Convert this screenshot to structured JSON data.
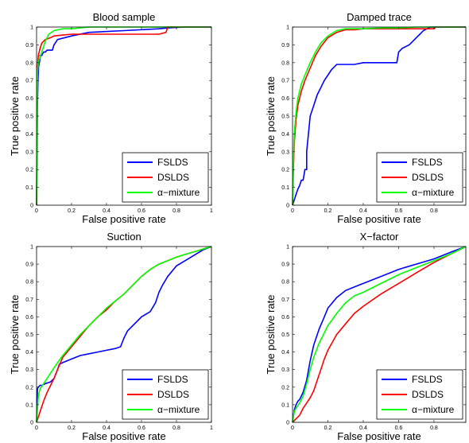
{
  "colors": {
    "FSLDS": "#0000ff",
    "DSLDS": "#ff0000",
    "alpha": "#00ff00"
  },
  "chart_data": [
    {
      "type": "line",
      "title": "Blood sample",
      "xlabel": "False positive rate",
      "ylabel": "True positive rate",
      "xlim": [
        0,
        1
      ],
      "ylim": [
        0,
        1
      ],
      "xticks": [
        "0",
        "0.2",
        "0.4",
        "0.6",
        "0.8",
        "1"
      ],
      "yticks": [
        "0",
        "0.1",
        "0.2",
        "0.3",
        "0.4",
        "0.5",
        "0.6",
        "0.7",
        "0.8",
        "0.9",
        "1"
      ],
      "legend_position": "bottom-right",
      "series": [
        {
          "name": "FSLDS",
          "x": [
            0,
            0.003,
            0.005,
            0.008,
            0.012,
            0.02,
            0.02,
            0.03,
            0.04,
            0.05,
            0.06,
            0.07,
            0.09,
            0.1,
            0.12,
            0.2,
            0.3,
            0.5,
            0.7,
            0.75,
            0.85,
            1.0
          ],
          "y": [
            0,
            0.3,
            0.55,
            0.7,
            0.78,
            0.82,
            0.84,
            0.84,
            0.86,
            0.86,
            0.87,
            0.87,
            0.87,
            0.9,
            0.93,
            0.95,
            0.97,
            0.98,
            0.99,
            0.995,
            1.0,
            1.0
          ]
        },
        {
          "name": "DSLDS",
          "x": [
            0,
            0.003,
            0.006,
            0.01,
            0.02,
            0.03,
            0.05,
            0.08,
            0.1,
            0.15,
            0.2,
            0.3,
            0.5,
            0.7,
            0.74,
            0.75,
            1.0
          ],
          "y": [
            0,
            0.6,
            0.78,
            0.84,
            0.88,
            0.91,
            0.93,
            0.94,
            0.95,
            0.955,
            0.96,
            0.96,
            0.96,
            0.96,
            0.97,
            1.0,
            1.0
          ]
        },
        {
          "name": "α−mixture",
          "x": [
            0,
            0.003,
            0.006,
            0.01,
            0.02,
            0.03,
            0.05,
            0.07,
            0.1,
            0.15,
            0.2,
            0.3,
            1.0
          ],
          "y": [
            0,
            0.5,
            0.75,
            0.8,
            0.83,
            0.86,
            0.92,
            0.96,
            0.98,
            0.99,
            0.99,
            1.0,
            1.0
          ]
        }
      ]
    },
    {
      "type": "line",
      "title": "Damped trace",
      "xlabel": "False positive rate",
      "ylabel": "True positive rate",
      "xlim": [
        0,
        0.98
      ],
      "ylim": [
        0,
        1
      ],
      "xticks": [
        "0",
        "0.2",
        "0.4",
        "0.6",
        "0.8"
      ],
      "yticks": [
        "0",
        "0.1",
        "0.2",
        "0.3",
        "0.4",
        "0.5",
        "0.6",
        "0.7",
        "0.8",
        "0.9",
        "1"
      ],
      "legend_position": "bottom-right",
      "series": [
        {
          "name": "FSLDS",
          "x": [
            0,
            0.01,
            0.02,
            0.03,
            0.04,
            0.05,
            0.06,
            0.07,
            0.08,
            0.08,
            0.09,
            0.1,
            0.12,
            0.14,
            0.16,
            0.18,
            0.2,
            0.22,
            0.25,
            0.3,
            0.33,
            0.35,
            0.4,
            0.5,
            0.59,
            0.6,
            0.62,
            0.64,
            0.66,
            0.68,
            0.7,
            0.72,
            0.74,
            0.76,
            0.78,
            0.8,
            0.98
          ],
          "y": [
            0,
            0.03,
            0.06,
            0.09,
            0.11,
            0.14,
            0.14,
            0.2,
            0.2,
            0.3,
            0.4,
            0.5,
            0.56,
            0.62,
            0.66,
            0.7,
            0.73,
            0.76,
            0.79,
            0.79,
            0.79,
            0.79,
            0.8,
            0.8,
            0.8,
            0.86,
            0.88,
            0.89,
            0.9,
            0.92,
            0.94,
            0.96,
            0.98,
            0.99,
            1.0,
            1.0,
            1.0
          ]
        },
        {
          "name": "DSLDS",
          "x": [
            0,
            0.005,
            0.01,
            0.02,
            0.03,
            0.05,
            0.07,
            0.1,
            0.13,
            0.16,
            0.2,
            0.25,
            0.3,
            0.35,
            0.4,
            0.5,
            0.6,
            0.7,
            0.8,
            0.81,
            0.98
          ],
          "y": [
            0,
            0.2,
            0.35,
            0.48,
            0.56,
            0.64,
            0.7,
            0.77,
            0.84,
            0.89,
            0.94,
            0.97,
            0.985,
            0.985,
            0.99,
            0.99,
            0.99,
            0.99,
            0.99,
            1.0,
            1.0
          ]
        },
        {
          "name": "α−mixture",
          "x": [
            0,
            0.005,
            0.01,
            0.02,
            0.03,
            0.05,
            0.07,
            0.1,
            0.13,
            0.16,
            0.2,
            0.25,
            0.3,
            0.35,
            0.4,
            0.5,
            0.6,
            0.7,
            0.98
          ],
          "y": [
            0,
            0.25,
            0.4,
            0.52,
            0.6,
            0.68,
            0.73,
            0.8,
            0.86,
            0.91,
            0.95,
            0.98,
            0.99,
            0.99,
            0.99,
            0.995,
            0.995,
            1.0,
            1.0
          ]
        }
      ]
    },
    {
      "type": "line",
      "title": "Suction",
      "xlabel": "False positive rate",
      "ylabel": "True positive rate",
      "xlim": [
        0,
        1
      ],
      "ylim": [
        0,
        1
      ],
      "xticks": [
        "0",
        "0.2",
        "0.4",
        "0.6",
        "0.8",
        "1"
      ],
      "yticks": [
        "0",
        "0.1",
        "0.2",
        "0.3",
        "0.4",
        "0.5",
        "0.6",
        "0.7",
        "0.8",
        "0.9",
        "1"
      ],
      "legend_position": "bottom-right",
      "series": [
        {
          "name": "FSLDS",
          "x": [
            0,
            0.003,
            0.005,
            0.01,
            0.02,
            0.03,
            0.05,
            0.08,
            0.1,
            0.12,
            0.13,
            0.15,
            0.2,
            0.25,
            0.3,
            0.35,
            0.4,
            0.45,
            0.48,
            0.5,
            0.52,
            0.55,
            0.6,
            0.65,
            0.68,
            0.7,
            0.72,
            0.75,
            0.8,
            0.85,
            0.9,
            0.95,
            1.0
          ],
          "y": [
            0,
            0.1,
            0.19,
            0.2,
            0.21,
            0.21,
            0.22,
            0.23,
            0.25,
            0.3,
            0.33,
            0.34,
            0.36,
            0.38,
            0.39,
            0.4,
            0.41,
            0.42,
            0.43,
            0.48,
            0.52,
            0.55,
            0.6,
            0.63,
            0.68,
            0.74,
            0.78,
            0.83,
            0.89,
            0.92,
            0.95,
            0.98,
            1.0
          ]
        },
        {
          "name": "DSLDS",
          "x": [
            0,
            0.02,
            0.04,
            0.06,
            0.08,
            0.1,
            0.12,
            0.15,
            0.2,
            0.25,
            0.3,
            0.35,
            0.4,
            0.45,
            0.5,
            0.55,
            0.6,
            0.65,
            0.7,
            0.75,
            0.8,
            0.85,
            0.9,
            0.95,
            1.0
          ],
          "y": [
            0,
            0.06,
            0.12,
            0.17,
            0.21,
            0.25,
            0.3,
            0.37,
            0.43,
            0.49,
            0.55,
            0.6,
            0.64,
            0.69,
            0.73,
            0.78,
            0.83,
            0.87,
            0.9,
            0.92,
            0.94,
            0.955,
            0.97,
            0.985,
            1.0
          ]
        },
        {
          "name": "α−mixture",
          "x": [
            0,
            0.01,
            0.02,
            0.04,
            0.06,
            0.08,
            0.1,
            0.12,
            0.15,
            0.2,
            0.25,
            0.3,
            0.35,
            0.4,
            0.45,
            0.5,
            0.55,
            0.6,
            0.65,
            0.7,
            0.75,
            0.8,
            0.85,
            0.9,
            0.95,
            1.0
          ],
          "y": [
            0,
            0.15,
            0.19,
            0.22,
            0.25,
            0.28,
            0.31,
            0.34,
            0.38,
            0.44,
            0.5,
            0.55,
            0.6,
            0.65,
            0.69,
            0.73,
            0.78,
            0.83,
            0.87,
            0.9,
            0.92,
            0.94,
            0.955,
            0.97,
            0.985,
            1.0
          ]
        }
      ]
    },
    {
      "type": "line",
      "title": "X−factor",
      "xlabel": "False positive rate",
      "ylabel": "True positive rate",
      "xlim": [
        0,
        0.98
      ],
      "ylim": [
        0,
        1
      ],
      "xticks": [
        "0",
        "0.2",
        "0.4",
        "0.6",
        "0.8"
      ],
      "yticks": [
        "0",
        "0.1",
        "0.2",
        "0.3",
        "0.4",
        "0.5",
        "0.6",
        "0.7",
        "0.8",
        "0.9",
        "1"
      ],
      "legend_position": "bottom-right",
      "series": [
        {
          "name": "FSLDS",
          "x": [
            0,
            0.01,
            0.02,
            0.03,
            0.04,
            0.05,
            0.06,
            0.08,
            0.1,
            0.12,
            0.15,
            0.18,
            0.2,
            0.25,
            0.3,
            0.35,
            0.4,
            0.5,
            0.6,
            0.7,
            0.8,
            0.9,
            0.98
          ],
          "y": [
            0,
            0.07,
            0.1,
            0.12,
            0.13,
            0.15,
            0.17,
            0.24,
            0.35,
            0.44,
            0.53,
            0.6,
            0.65,
            0.71,
            0.75,
            0.77,
            0.79,
            0.83,
            0.87,
            0.9,
            0.93,
            0.97,
            1.0
          ]
        },
        {
          "name": "DSLDS",
          "x": [
            0,
            0.02,
            0.04,
            0.06,
            0.08,
            0.1,
            0.12,
            0.14,
            0.16,
            0.18,
            0.2,
            0.25,
            0.3,
            0.35,
            0.4,
            0.5,
            0.6,
            0.7,
            0.8,
            0.9,
            0.98
          ],
          "y": [
            0,
            0.02,
            0.04,
            0.08,
            0.11,
            0.14,
            0.18,
            0.24,
            0.3,
            0.36,
            0.41,
            0.5,
            0.56,
            0.62,
            0.66,
            0.73,
            0.79,
            0.85,
            0.91,
            0.96,
            1.0
          ]
        },
        {
          "name": "α−mixture",
          "x": [
            0,
            0.01,
            0.02,
            0.04,
            0.06,
            0.08,
            0.1,
            0.12,
            0.15,
            0.2,
            0.25,
            0.3,
            0.35,
            0.4,
            0.5,
            0.6,
            0.7,
            0.8,
            0.9,
            0.98
          ],
          "y": [
            0,
            0.06,
            0.08,
            0.11,
            0.15,
            0.22,
            0.3,
            0.37,
            0.45,
            0.55,
            0.62,
            0.68,
            0.72,
            0.74,
            0.79,
            0.84,
            0.88,
            0.92,
            0.96,
            1.0
          ]
        }
      ]
    }
  ]
}
